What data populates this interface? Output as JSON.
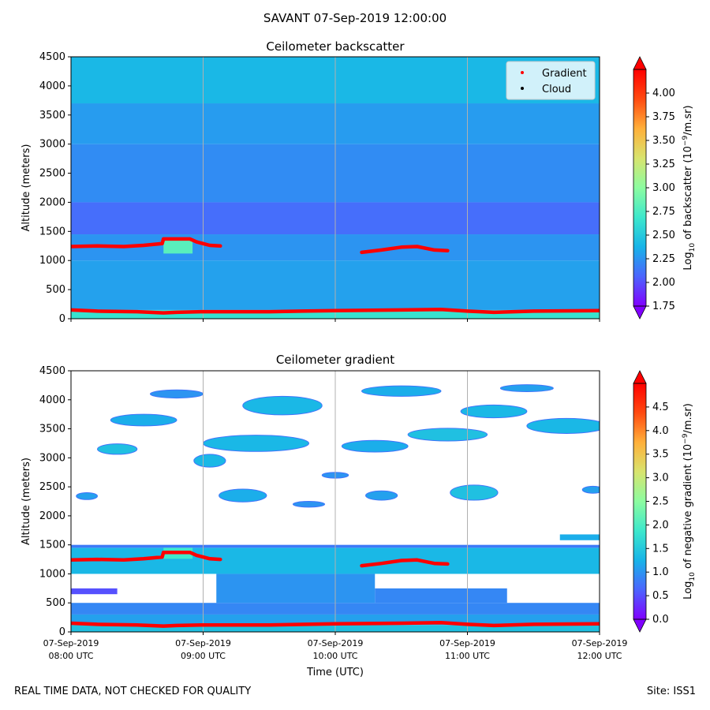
{
  "figure": {
    "title": "SAVANT 07-Sep-2019 12:00:00",
    "footer_left": "REAL TIME DATA, NOT CHECKED FOR QUALITY",
    "footer_right": "Site: ISS1"
  },
  "colors": {
    "gradient_marker": "#ff0000",
    "cloud_marker": "#000000",
    "grid": "#b0b0b0",
    "cmap": [
      "#8000ff",
      "#4c64fe",
      "#17b4e8",
      "#3de8cc",
      "#8cfca0",
      "#d8e46e",
      "#ffb03a",
      "#ff4a10",
      "#ff0000"
    ]
  },
  "chart_data": [
    {
      "type": "heatmap",
      "title": "Ceilometer backscatter",
      "xlabel": "",
      "ylabel": "Altitude (meters)",
      "xlim": [
        8.0,
        12.0
      ],
      "ylim": [
        0,
        4500
      ],
      "yticks": [
        "0",
        "500",
        "1000",
        "1500",
        "2000",
        "2500",
        "3000",
        "3500",
        "4000",
        "4500"
      ],
      "xticks": [
        {
          "line1": "",
          "line2": ""
        },
        {
          "line1": "",
          "line2": ""
        },
        {
          "line1": "",
          "line2": ""
        },
        {
          "line1": "",
          "line2": ""
        },
        {
          "line1": "",
          "line2": ""
        }
      ],
      "grid": "vertical",
      "legend": {
        "position": "top-right",
        "entries": [
          "Gradient",
          "Cloud"
        ]
      },
      "colorbar": {
        "label": "Log10 of backscatter (10^-9/m.sr)",
        "label_main": "Log",
        "label_sub": "10",
        "label_tail": " of backscatter (10",
        "label_sup": "−9",
        "label_end": "/m.sr)",
        "min": 1.75,
        "max": 4.25,
        "ticks": [
          "1.75",
          "2.00",
          "2.25",
          "2.50",
          "2.75",
          "3.00",
          "3.25",
          "3.50",
          "3.75",
          "4.00"
        ],
        "tick_values": [
          1.75,
          2.0,
          2.25,
          2.5,
          2.75,
          3.0,
          3.25,
          3.5,
          3.75,
          4.0
        ]
      },
      "bands": [
        {
          "alt_from": 0,
          "alt_to": 150,
          "value": 2.65
        },
        {
          "alt_from": 150,
          "alt_to": 1000,
          "value": 2.3
        },
        {
          "alt_from": 1000,
          "alt_to": 1450,
          "value": 2.25
        },
        {
          "alt_from": 1450,
          "alt_to": 2000,
          "value": 2.1
        },
        {
          "alt_from": 2000,
          "alt_to": 3000,
          "value": 2.22
        },
        {
          "alt_from": 3000,
          "alt_to": 3700,
          "value": 2.28
        },
        {
          "alt_from": 3700,
          "alt_to": 4500,
          "value": 2.4
        }
      ],
      "patches": [
        {
          "t_from": 8.7,
          "t_to": 8.92,
          "alt_from": 1120,
          "alt_to": 1380,
          "value": 2.8
        }
      ],
      "series": [
        {
          "name": "Gradient",
          "time": [
            8.0,
            8.2,
            8.4,
            8.55,
            8.69,
            8.7,
            8.9,
            8.95,
            9.0,
            9.05,
            9.13
          ],
          "alt": [
            1240,
            1250,
            1240,
            1260,
            1290,
            1370,
            1370,
            1320,
            1290,
            1260,
            1250
          ]
        },
        {
          "name": "Gradient",
          "time": [
            10.2,
            10.35,
            10.5,
            10.62,
            10.75,
            10.85
          ],
          "alt": [
            1140,
            1180,
            1230,
            1240,
            1180,
            1170
          ]
        },
        {
          "name": "Gradient",
          "time": [
            8.0,
            8.2,
            8.5,
            8.7,
            8.8,
            9.0,
            9.5,
            10.0,
            10.5,
            10.8,
            11.0,
            11.2,
            11.5,
            12.0
          ],
          "alt": [
            150,
            130,
            120,
            100,
            110,
            120,
            120,
            140,
            150,
            160,
            130,
            110,
            130,
            140
          ]
        }
      ]
    },
    {
      "type": "heatmap",
      "title": "Ceilometer gradient",
      "xlabel": "Time (UTC)",
      "ylabel": "Altitude (meters)",
      "xlim": [
        8.0,
        12.0
      ],
      "ylim": [
        0,
        4500
      ],
      "yticks": [
        "0",
        "500",
        "1000",
        "1500",
        "2000",
        "2500",
        "3000",
        "3500",
        "4000",
        "4500"
      ],
      "xticks": [
        {
          "line1": "07-Sep-2019",
          "line2": "08:00 UTC"
        },
        {
          "line1": "07-Sep-2019",
          "line2": "09:00 UTC"
        },
        {
          "line1": "07-Sep-2019",
          "line2": "10:00 UTC"
        },
        {
          "line1": "07-Sep-2019",
          "line2": "11:00 UTC"
        },
        {
          "line1": "07-Sep-2019",
          "line2": "12:00 UTC"
        }
      ],
      "grid": "vertical",
      "colorbar": {
        "label": "Log10 of negative gradient (10^-9/m.sr)",
        "label_main": "Log",
        "label_sub": "10",
        "label_tail": " of negative gradient (10",
        "label_sup": "−9",
        "label_end": "/m.sr)",
        "min": 0.0,
        "max": 5.0,
        "ticks": [
          "0.0",
          "0.5",
          "1.0",
          "1.5",
          "2.0",
          "2.5",
          "3.0",
          "3.5",
          "4.0",
          "4.5"
        ],
        "tick_values": [
          0.0,
          0.5,
          1.0,
          1.5,
          2.0,
          2.5,
          3.0,
          3.5,
          4.0,
          4.5
        ]
      },
      "bands": [
        {
          "alt_from": 0,
          "alt_to": 120,
          "value": 1.4
        },
        {
          "alt_from": 120,
          "alt_to": 300,
          "value": 1.1
        },
        {
          "alt_from": 300,
          "alt_to": 500,
          "value": 0.9
        },
        {
          "alt_from": 500,
          "alt_to": 1000,
          "value": null
        },
        {
          "alt_from": 1000,
          "alt_to": 1450,
          "value": 1.3
        },
        {
          "alt_from": 1450,
          "alt_to": 1500,
          "value": 0.8
        }
      ],
      "patches": [
        {
          "t_from": 8.7,
          "t_to": 8.92,
          "alt_from": 1260,
          "alt_to": 1450,
          "value": 1.9
        },
        {
          "t_from": 9.1,
          "t_to": 10.3,
          "alt_from": 500,
          "alt_to": 1000,
          "value": 1.0
        },
        {
          "t_from": 10.3,
          "t_to": 11.3,
          "alt_from": 500,
          "alt_to": 750,
          "value": 0.9
        },
        {
          "t_from": 8.0,
          "t_to": 8.35,
          "alt_from": 650,
          "alt_to": 750,
          "value": 0.5
        },
        {
          "t_from": 11.7,
          "t_to": 12.0,
          "alt_from": 1580,
          "alt_to": 1680,
          "value": 1.2
        }
      ],
      "clouds": [
        {
          "t": 8.12,
          "alt": 2340,
          "dt": 0.08,
          "dalt": 60,
          "value": 1.1
        },
        {
          "t": 8.55,
          "alt": 3650,
          "dt": 0.25,
          "dalt": 100,
          "value": 1.2
        },
        {
          "t": 8.35,
          "alt": 3150,
          "dt": 0.15,
          "dalt": 90,
          "value": 1.4
        },
        {
          "t": 8.8,
          "alt": 4100,
          "dt": 0.2,
          "dalt": 70,
          "value": 1.0
        },
        {
          "t": 9.05,
          "alt": 2950,
          "dt": 0.12,
          "dalt": 110,
          "value": 1.3
        },
        {
          "t": 9.3,
          "alt": 2350,
          "dt": 0.18,
          "dalt": 110,
          "value": 1.2
        },
        {
          "t": 9.4,
          "alt": 3250,
          "dt": 0.4,
          "dalt": 140,
          "value": 1.3
        },
        {
          "t": 9.6,
          "alt": 3900,
          "dt": 0.3,
          "dalt": 160,
          "value": 1.3
        },
        {
          "t": 9.8,
          "alt": 2200,
          "dt": 0.12,
          "dalt": 50,
          "value": 1.0
        },
        {
          "t": 10.0,
          "alt": 2700,
          "dt": 0.1,
          "dalt": 50,
          "value": 1.0
        },
        {
          "t": 10.3,
          "alt": 3200,
          "dt": 0.25,
          "dalt": 100,
          "value": 1.2
        },
        {
          "t": 10.35,
          "alt": 2350,
          "dt": 0.12,
          "dalt": 80,
          "value": 1.1
        },
        {
          "t": 10.5,
          "alt": 4150,
          "dt": 0.3,
          "dalt": 90,
          "value": 1.2
        },
        {
          "t": 10.85,
          "alt": 3400,
          "dt": 0.3,
          "dalt": 110,
          "value": 1.4
        },
        {
          "t": 11.05,
          "alt": 2400,
          "dt": 0.18,
          "dalt": 130,
          "value": 1.4
        },
        {
          "t": 11.2,
          "alt": 3800,
          "dt": 0.25,
          "dalt": 110,
          "value": 1.3
        },
        {
          "t": 11.45,
          "alt": 4200,
          "dt": 0.2,
          "dalt": 60,
          "value": 1.1
        },
        {
          "t": 11.75,
          "alt": 3550,
          "dt": 0.3,
          "dalt": 130,
          "value": 1.3
        },
        {
          "t": 11.95,
          "alt": 2450,
          "dt": 0.08,
          "dalt": 60,
          "value": 1.1
        }
      ],
      "series": [
        {
          "name": "Gradient",
          "time": [
            8.0,
            8.2,
            8.4,
            8.55,
            8.69,
            8.7,
            8.9,
            8.95,
            9.0,
            9.05,
            9.13
          ],
          "alt": [
            1240,
            1250,
            1240,
            1260,
            1290,
            1370,
            1370,
            1320,
            1290,
            1260,
            1250
          ]
        },
        {
          "name": "Gradient",
          "time": [
            10.2,
            10.35,
            10.5,
            10.62,
            10.75,
            10.85
          ],
          "alt": [
            1140,
            1180,
            1230,
            1240,
            1180,
            1170
          ]
        },
        {
          "name": "Gradient",
          "time": [
            8.0,
            8.2,
            8.5,
            8.7,
            8.8,
            9.0,
            9.5,
            10.0,
            10.5,
            10.8,
            11.0,
            11.2,
            11.5,
            12.0
          ],
          "alt": [
            150,
            130,
            120,
            100,
            110,
            120,
            120,
            140,
            150,
            160,
            130,
            110,
            130,
            140
          ]
        }
      ]
    }
  ]
}
